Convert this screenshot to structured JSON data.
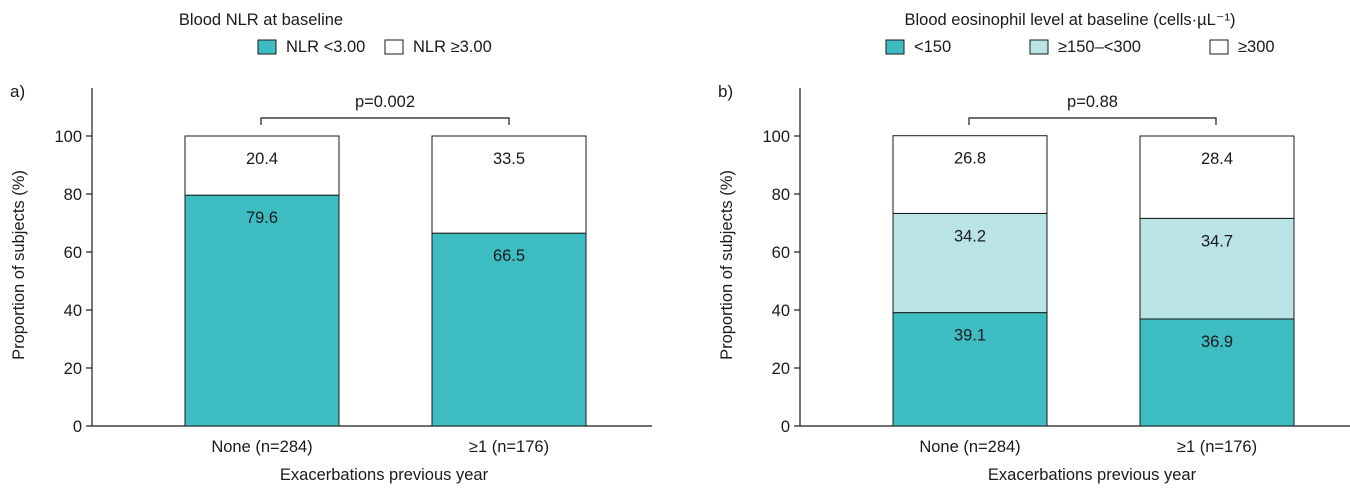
{
  "chart_data": [
    {
      "panel_label": "a)",
      "type": "bar",
      "stacked": true,
      "legend_title": "Blood NLR at baseline",
      "legend_position": "top",
      "categories": [
        "None (n=284)",
        "≥1 (n=176)"
      ],
      "series": [
        {
          "name": "NLR <3.00",
          "color": "#3dbcc2",
          "values": [
            79.6,
            66.5
          ]
        },
        {
          "name": "NLR ≥3.00",
          "color": "#ffffff",
          "values": [
            20.4,
            33.5
          ]
        }
      ],
      "xlabel": "Exacerbations previous year",
      "ylabel": "Proportion of subjects (%)",
      "ylim": [
        0,
        100
      ],
      "yticks": [
        0,
        20,
        40,
        60,
        80,
        100
      ],
      "annotation": "p=0.002",
      "grid": false
    },
    {
      "panel_label": "b)",
      "type": "bar",
      "stacked": true,
      "legend_title": "Blood eosinophil level at baseline (cells·µL⁻¹)",
      "legend_position": "top",
      "categories": [
        "None (n=284)",
        "≥1 (n=176)"
      ],
      "series": [
        {
          "name": "<150",
          "color": "#3dbcc2",
          "values": [
            39.1,
            36.9
          ]
        },
        {
          "name": "≥150–<300",
          "color": "#b9e3e5",
          "values": [
            34.2,
            34.7
          ]
        },
        {
          "name": "≥300",
          "color": "#ffffff",
          "values": [
            26.8,
            28.4
          ]
        }
      ],
      "xlabel": "Exacerbations previous year",
      "ylabel": "Proportion of subjects (%)",
      "ylim": [
        0,
        100
      ],
      "yticks": [
        0,
        20,
        40,
        60,
        80,
        100
      ],
      "annotation": "p=0.88",
      "grid": false
    }
  ]
}
